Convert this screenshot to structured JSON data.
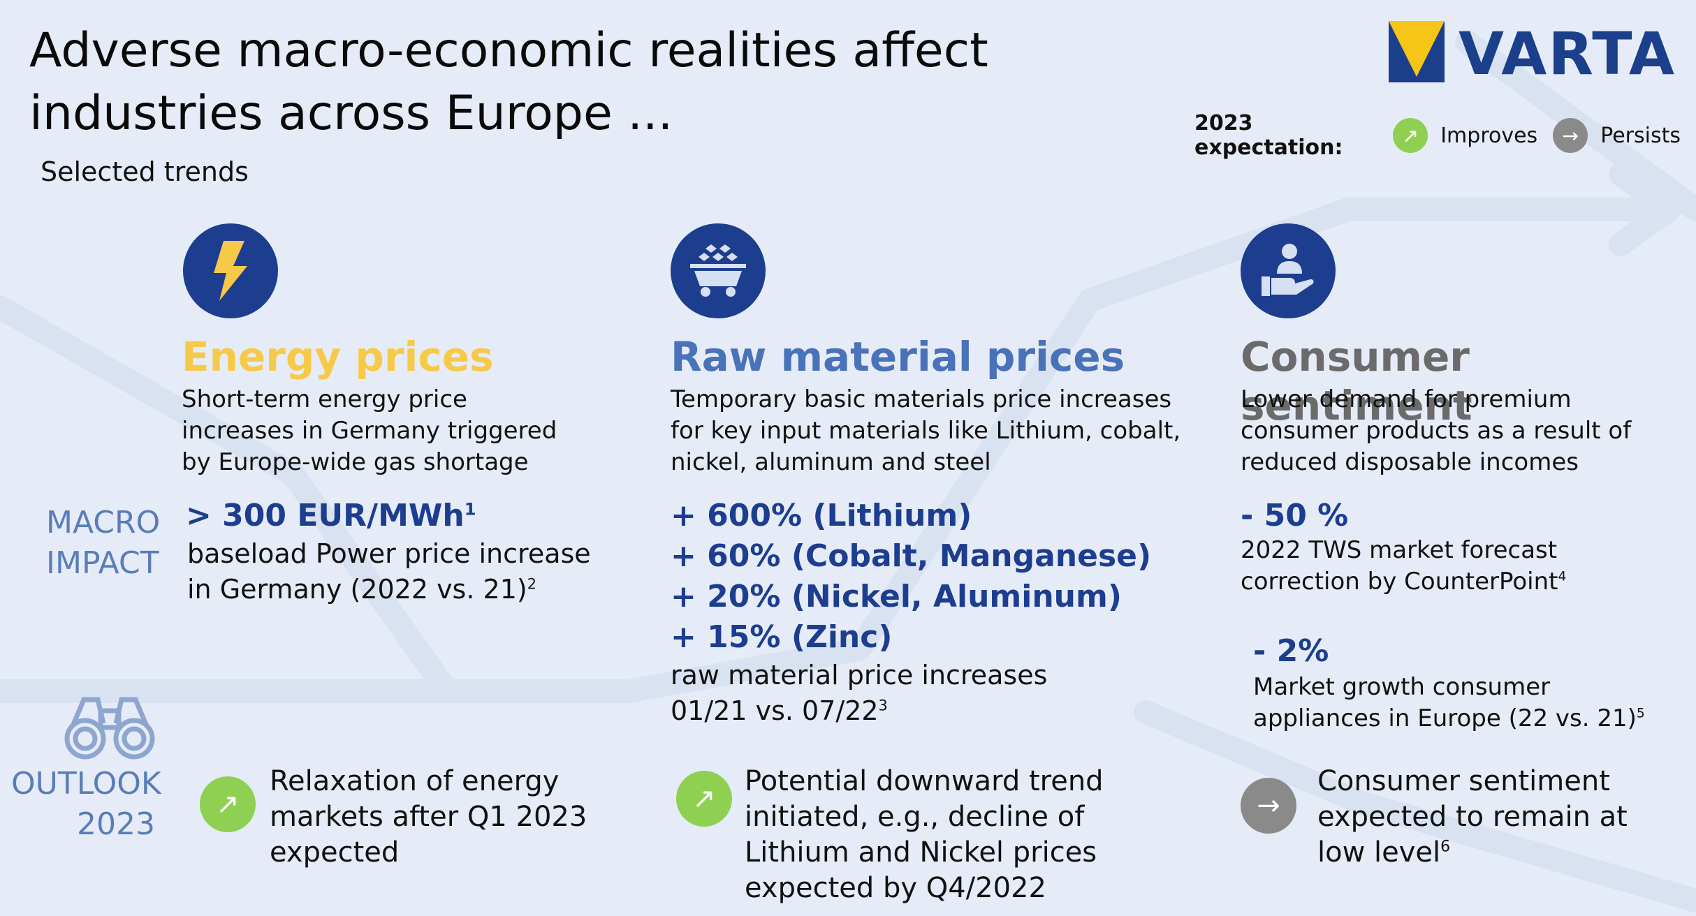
{
  "title_line1": "Adverse macro-economic realities affect",
  "title_line2": "industries across Europe ...",
  "subtitle": "Selected trends",
  "logo_text": "VARTA",
  "legend": {
    "label": "2023 expectation:",
    "improves": "Improves",
    "persists": "Persists",
    "improves_icon": "arrow-up-right-icon",
    "persists_icon": "arrow-right-icon"
  },
  "side": {
    "macro_line1": "MACRO",
    "macro_line2": "IMPACT",
    "outlook_line1": "OUTLOOK",
    "outlook_line2": "2023"
  },
  "colors": {
    "navy": "#1d3d8f",
    "energy_title": "#f7c948",
    "raw_title": "#4a72b8",
    "consumer_title": "#6b6b6b",
    "green": "#8fd053",
    "gray": "#8a8a8a",
    "side_label": "#5a7db8"
  },
  "columns": {
    "energy": {
      "icon": "lightning-icon",
      "title": "Energy prices",
      "desc": [
        "Short-term energy price",
        "increases in Germany triggered",
        "by Europe-wide gas shortage"
      ],
      "stat": "> 300 EUR/MWh",
      "stat_sup": "1",
      "detail_line1": "baseload Power price increase",
      "detail_line2": "in Germany (2022 vs. 21)",
      "detail_sup": "2",
      "outlook": [
        "Relaxation of energy",
        "markets after Q1 2023",
        "expected"
      ],
      "outlook_status": "improves"
    },
    "raw": {
      "icon": "mining-cart-icon",
      "title": "Raw material prices",
      "desc": [
        "Temporary basic materials price increases",
        "for key input materials like Lithium, cobalt,",
        "nickel, aluminum and steel"
      ],
      "stats": [
        "+ 600% (Lithium)",
        "+ 60% (Cobalt, Manganese)",
        "+ 20% (Nickel, Aluminum)",
        "+ 15% (Zinc)"
      ],
      "detail_line1": "raw material price increases",
      "detail_line2": "01/21 vs. 07/22",
      "detail_sup": "3",
      "outlook": [
        "Potential downward trend",
        "initiated, e.g., decline of",
        "Lithium and Nickel prices",
        "expected by Q4/2022"
      ],
      "outlook_status": "improves"
    },
    "consumer": {
      "icon": "person-hand-icon",
      "title": "Consumer sentiment",
      "desc": [
        "Lower demand for premium",
        "consumer products as a result of",
        "reduced disposable incomes"
      ],
      "stat1": "- 50 %",
      "stat1_line1": "2022 TWS market forecast",
      "stat1_line2": "correction by CounterPoint",
      "stat1_sup": "4",
      "stat2": "- 2%",
      "stat2_line1": "Market growth consumer",
      "stat2_line2": "appliances in Europe (22 vs. 21)",
      "stat2_sup": "5",
      "outlook_line1": "Consumer sentiment",
      "outlook_line2": "expected to remain at",
      "outlook_line3": "low level",
      "outlook_sup": "6",
      "outlook_status": "persists"
    }
  }
}
